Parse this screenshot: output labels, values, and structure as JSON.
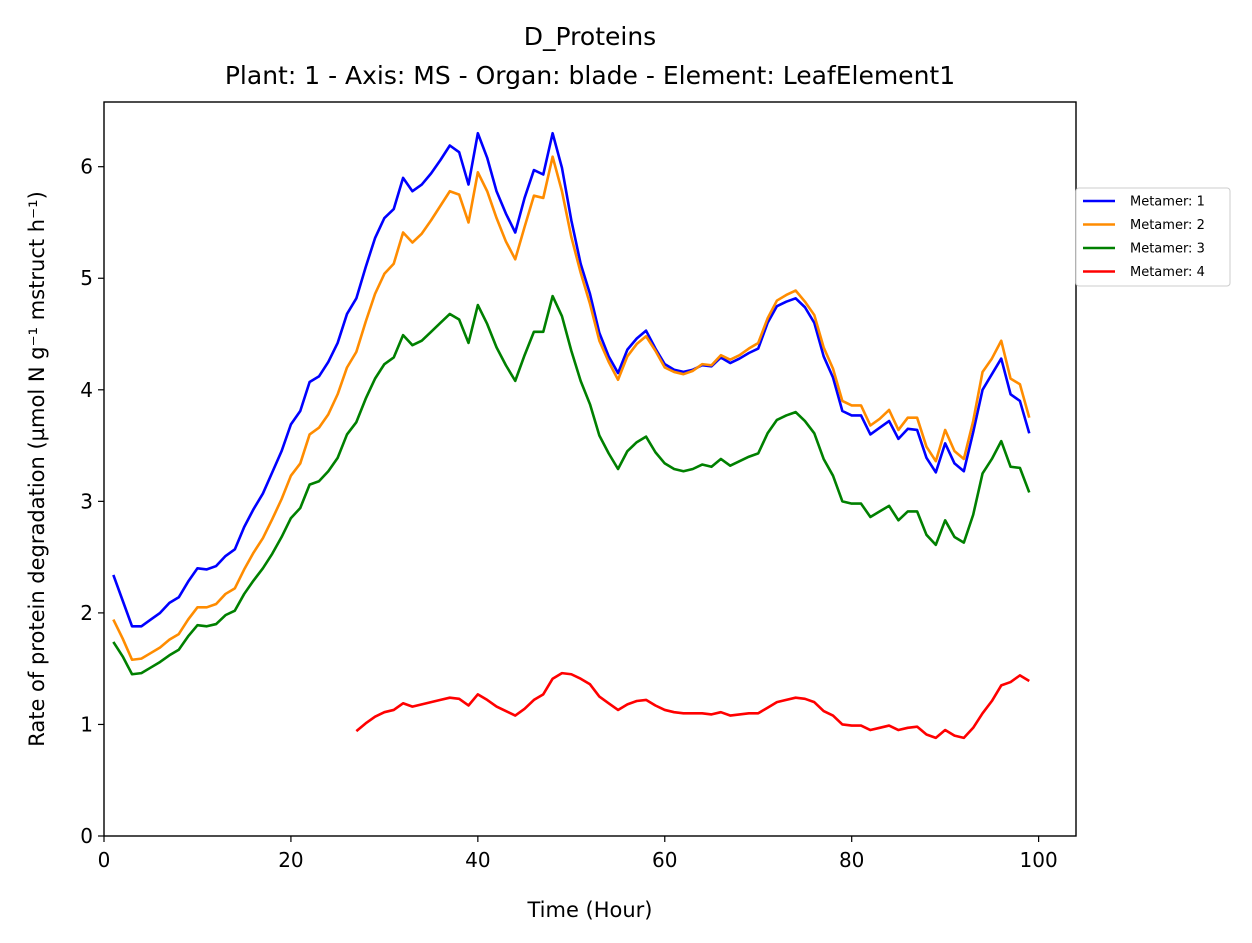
{
  "chart_data": {
    "type": "line",
    "title": "D_Proteins",
    "subtitle": "Plant: 1 - Axis: MS - Organ: blade - Element: LeafElement1",
    "xlabel": "Time (Hour)",
    "ylabel": "Rate of protein degradation (µmol N g⁻¹ mstruct h⁻¹)",
    "xlim": [
      0,
      104
    ],
    "ylim": [
      0,
      6.58
    ],
    "xticks": [
      "0",
      "20",
      "40",
      "60",
      "80",
      "100"
    ],
    "yticks": [
      "0",
      "1",
      "2",
      "3",
      "4",
      "5",
      "6"
    ],
    "grid": false,
    "legend_position": "outside right",
    "series": [
      {
        "name": "Metamer: 1",
        "color": "#0000ff",
        "x_start": 1,
        "values": [
          2.34,
          2.11,
          1.88,
          1.88,
          1.94,
          2.0,
          2.09,
          2.14,
          2.28,
          2.4,
          2.39,
          2.42,
          2.51,
          2.57,
          2.77,
          2.93,
          3.07,
          3.26,
          3.45,
          3.69,
          3.81,
          4.07,
          4.12,
          4.25,
          4.42,
          4.68,
          4.82,
          5.1,
          5.36,
          5.54,
          5.62,
          5.9,
          5.78,
          5.84,
          5.94,
          6.06,
          6.19,
          6.13,
          5.84,
          6.3,
          6.08,
          5.78,
          5.58,
          5.41,
          5.72,
          5.97,
          5.93,
          6.3,
          5.99,
          5.52,
          5.13,
          4.86,
          4.51,
          4.3,
          4.15,
          4.36,
          4.46,
          4.53,
          4.37,
          4.23,
          4.18,
          4.16,
          4.18,
          4.22,
          4.21,
          4.29,
          4.24,
          4.28,
          4.33,
          4.37,
          4.6,
          4.75,
          4.79,
          4.82,
          4.74,
          4.6,
          4.3,
          4.11,
          3.81,
          3.77,
          3.77,
          3.6,
          3.66,
          3.72,
          3.56,
          3.65,
          3.64,
          3.39,
          3.26,
          3.52,
          3.34,
          3.27,
          3.62,
          4.0,
          4.14,
          4.28,
          3.96,
          3.9,
          3.61
        ]
      },
      {
        "name": "Metamer: 2",
        "color": "#ff8c00",
        "x_start": 1,
        "values": [
          1.94,
          1.77,
          1.58,
          1.59,
          1.64,
          1.69,
          1.76,
          1.81,
          1.94,
          2.05,
          2.05,
          2.08,
          2.17,
          2.22,
          2.39,
          2.54,
          2.67,
          2.84,
          3.02,
          3.23,
          3.34,
          3.6,
          3.66,
          3.78,
          3.96,
          4.2,
          4.34,
          4.61,
          4.86,
          5.04,
          5.13,
          5.41,
          5.32,
          5.4,
          5.52,
          5.65,
          5.78,
          5.75,
          5.5,
          5.95,
          5.78,
          5.54,
          5.33,
          5.17,
          5.46,
          5.74,
          5.72,
          6.09,
          5.78,
          5.37,
          5.05,
          4.77,
          4.44,
          4.25,
          4.09,
          4.3,
          4.41,
          4.48,
          4.35,
          4.2,
          4.16,
          4.14,
          4.17,
          4.23,
          4.22,
          4.31,
          4.27,
          4.31,
          4.37,
          4.42,
          4.64,
          4.8,
          4.85,
          4.89,
          4.79,
          4.67,
          4.38,
          4.19,
          3.9,
          3.86,
          3.86,
          3.68,
          3.74,
          3.82,
          3.64,
          3.75,
          3.75,
          3.49,
          3.36,
          3.64,
          3.45,
          3.38,
          3.72,
          4.16,
          4.28,
          4.44,
          4.1,
          4.05,
          3.75
        ]
      },
      {
        "name": "Metamer: 3",
        "color": "#008000",
        "x_start": 1,
        "values": [
          1.74,
          1.61,
          1.45,
          1.46,
          1.51,
          1.56,
          1.62,
          1.67,
          1.79,
          1.89,
          1.88,
          1.9,
          1.98,
          2.02,
          2.17,
          2.29,
          2.4,
          2.53,
          2.68,
          2.85,
          2.94,
          3.15,
          3.18,
          3.27,
          3.39,
          3.6,
          3.71,
          3.92,
          4.1,
          4.23,
          4.29,
          4.49,
          4.4,
          4.44,
          4.52,
          4.6,
          4.68,
          4.63,
          4.42,
          4.76,
          4.59,
          4.38,
          4.22,
          4.08,
          4.31,
          4.52,
          4.52,
          4.84,
          4.66,
          4.35,
          4.08,
          3.87,
          3.59,
          3.43,
          3.29,
          3.45,
          3.53,
          3.58,
          3.44,
          3.34,
          3.29,
          3.27,
          3.29,
          3.33,
          3.31,
          3.38,
          3.32,
          3.36,
          3.4,
          3.43,
          3.61,
          3.73,
          3.77,
          3.8,
          3.72,
          3.61,
          3.38,
          3.23,
          3.0,
          2.98,
          2.98,
          2.86,
          2.91,
          2.96,
          2.83,
          2.91,
          2.91,
          2.7,
          2.61,
          2.83,
          2.68,
          2.63,
          2.88,
          3.25,
          3.38,
          3.54,
          3.31,
          3.3,
          3.08
        ]
      },
      {
        "name": "Metamer: 4",
        "color": "#ff0000",
        "x_start": 27,
        "values": [
          0.94,
          1.01,
          1.07,
          1.11,
          1.13,
          1.19,
          1.16,
          1.18,
          1.2,
          1.22,
          1.24,
          1.23,
          1.17,
          1.27,
          1.22,
          1.16,
          1.12,
          1.08,
          1.14,
          1.22,
          1.27,
          1.41,
          1.46,
          1.45,
          1.41,
          1.36,
          1.25,
          1.19,
          1.13,
          1.18,
          1.21,
          1.22,
          1.17,
          1.13,
          1.11,
          1.1,
          1.1,
          1.1,
          1.09,
          1.11,
          1.08,
          1.09,
          1.1,
          1.1,
          1.15,
          1.2,
          1.22,
          1.24,
          1.23,
          1.2,
          1.12,
          1.08,
          1.0,
          0.99,
          0.99,
          0.95,
          0.97,
          0.99,
          0.95,
          0.97,
          0.98,
          0.91,
          0.88,
          0.95,
          0.9,
          0.88,
          0.97,
          1.1,
          1.21,
          1.35,
          1.38,
          1.44,
          1.39
        ]
      }
    ]
  }
}
